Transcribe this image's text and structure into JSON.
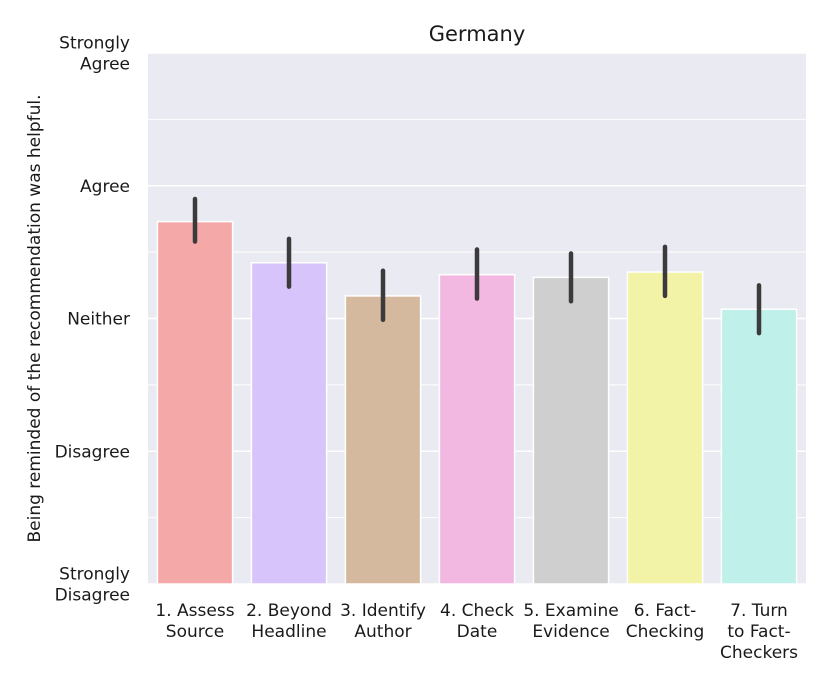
{
  "chart_data": {
    "type": "bar",
    "title": "Germany",
    "ylabel": "Being reminded of the recommendation was helpful.",
    "xlabel": "",
    "ylim": [
      1,
      5
    ],
    "yticks": [
      {
        "value": 1,
        "lines": [
          "Strongly",
          "Disagree"
        ]
      },
      {
        "value": 2,
        "lines": [
          "Disagree"
        ]
      },
      {
        "value": 3,
        "lines": [
          "Neither"
        ]
      },
      {
        "value": 4,
        "lines": [
          "Agree"
        ]
      },
      {
        "value": 5,
        "lines": [
          "Strongly",
          "Agree"
        ]
      }
    ],
    "minor_grid": [
      1.5,
      2.5,
      3.5,
      4.5
    ],
    "categories": [
      {
        "lines": [
          "1. Assess",
          "Source"
        ],
        "value": 3.73,
        "ci": [
          3.58,
          3.9
        ],
        "color": "#f4a9a8"
      },
      {
        "lines": [
          "2. Beyond",
          "Headline"
        ],
        "value": 3.42,
        "ci": [
          3.24,
          3.6
        ],
        "color": "#d6c4fa"
      },
      {
        "lines": [
          "3. Identify",
          "Author"
        ],
        "value": 3.17,
        "ci": [
          2.99,
          3.36
        ],
        "color": "#d5b99e"
      },
      {
        "lines": [
          "4. Check",
          "Date"
        ],
        "value": 3.33,
        "ci": [
          3.15,
          3.52
        ],
        "color": "#f2b8e2"
      },
      {
        "lines": [
          "5. Examine",
          "Evidence"
        ],
        "value": 3.31,
        "ci": [
          3.13,
          3.49
        ],
        "color": "#cfcfcf"
      },
      {
        "lines": [
          "6. Fact-",
          "Checking"
        ],
        "value": 3.35,
        "ci": [
          3.17,
          3.54
        ],
        "color": "#f3f3a8"
      },
      {
        "lines": [
          "7. Turn",
          "to Fact-",
          "Checkers"
        ],
        "value": 3.07,
        "ci": [
          2.89,
          3.25
        ],
        "color": "#bff0e9"
      }
    ]
  }
}
